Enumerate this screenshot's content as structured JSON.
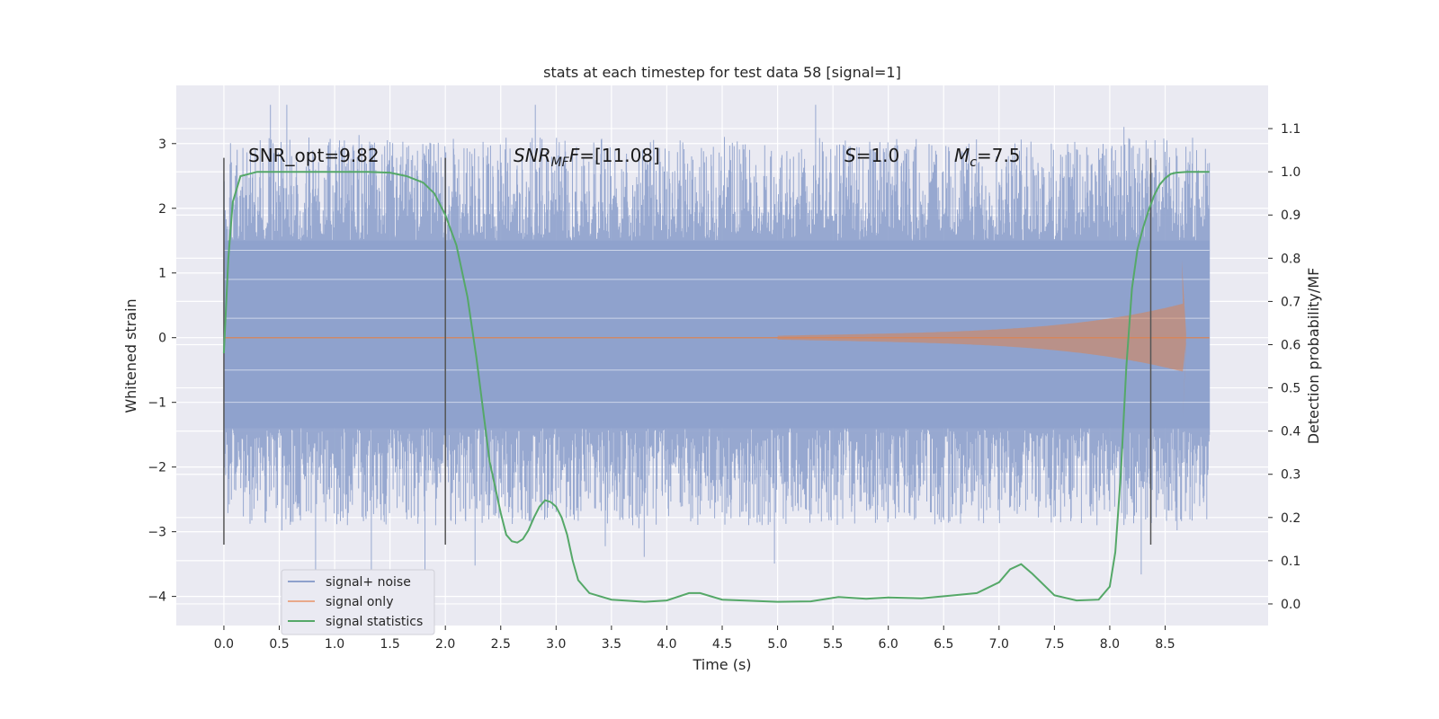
{
  "chart_data": {
    "type": "line",
    "title": "stats at each timestep for test data 58 [signal=1]",
    "xlabel": "Time (s)",
    "ylabel": "Whitened strain",
    "y2label": "Detection probability/MF",
    "xlim": [
      -0.43,
      9.43
    ],
    "ylim": [
      -4.45,
      3.9
    ],
    "y2lim": [
      -0.05,
      1.2
    ],
    "x_ticks": [
      0.0,
      0.5,
      1.0,
      1.5,
      2.0,
      2.5,
      3.0,
      3.5,
      4.0,
      4.5,
      5.0,
      5.5,
      6.0,
      6.5,
      7.0,
      7.5,
      8.0,
      8.5
    ],
    "x_tick_labels": [
      "0.0",
      "0.5",
      "1.0",
      "1.5",
      "2.0",
      "2.5",
      "3.0",
      "3.5",
      "4.0",
      "4.5",
      "5.0",
      "5.5",
      "6.0",
      "6.5",
      "7.0",
      "7.5",
      "8.0",
      "8.5"
    ],
    "y_ticks": [
      3,
      2,
      1,
      0,
      -1,
      -2,
      -3,
      -4
    ],
    "y_tick_labels": [
      "3",
      "2",
      "1",
      "0",
      "−1",
      "−2",
      "−3",
      "−4"
    ],
    "y2_ticks": [
      0.0,
      0.1,
      0.2,
      0.3,
      0.4,
      0.5,
      0.6,
      0.7,
      0.8,
      0.9,
      1.0,
      1.1
    ],
    "y2_tick_labels": [
      "0.0",
      "0.1",
      "0.2",
      "0.3",
      "0.4",
      "0.5",
      "0.6",
      "0.7",
      "0.8",
      "0.9",
      "1.0",
      "1.1"
    ],
    "grid": true,
    "legend_position": "lower-left",
    "noise": {
      "x_start": 0.0,
      "x_end": 8.9,
      "dense_band": [
        -1.4,
        1.5
      ],
      "max": 3.6,
      "min": -4.0
    },
    "vertical_lines": [
      0.0,
      2.0,
      8.37
    ],
    "vertical_line_range": [
      -3.2,
      2.78
    ],
    "signal_only": {
      "start": 5.0,
      "merger": 8.67,
      "peak_amplitude": 1.2,
      "min_amplitude": -1.25,
      "end": 8.9
    },
    "series": [
      {
        "name": "signal+ noise",
        "color": "#8ea1cc"
      },
      {
        "name": "signal only",
        "color": "#dd8452"
      },
      {
        "name": "signal statistics",
        "color": "#55a868",
        "x": [
          0.0,
          0.04,
          0.08,
          0.15,
          0.3,
          0.6,
          1.0,
          1.3,
          1.5,
          1.65,
          1.8,
          1.9,
          2.0,
          2.1,
          2.2,
          2.28,
          2.35,
          2.4,
          2.45,
          2.5,
          2.55,
          2.6,
          2.65,
          2.7,
          2.75,
          2.8,
          2.85,
          2.9,
          2.95,
          3.0,
          3.05,
          3.1,
          3.15,
          3.2,
          3.3,
          3.5,
          3.8,
          4.0,
          4.2,
          4.3,
          4.5,
          5.0,
          5.3,
          5.55,
          5.8,
          6.0,
          6.3,
          6.6,
          6.8,
          7.0,
          7.1,
          7.2,
          7.3,
          7.5,
          7.7,
          7.9,
          8.0,
          8.05,
          8.1,
          8.15,
          8.2,
          8.25,
          8.3,
          8.35,
          8.4,
          8.45,
          8.5,
          8.55,
          8.6,
          8.7,
          8.9
        ],
        "values": [
          0.58,
          0.8,
          0.93,
          0.99,
          1.0,
          1.0,
          1.0,
          1.0,
          0.998,
          0.99,
          0.975,
          0.95,
          0.9,
          0.83,
          0.71,
          0.57,
          0.43,
          0.33,
          0.27,
          0.21,
          0.16,
          0.145,
          0.142,
          0.15,
          0.17,
          0.2,
          0.225,
          0.24,
          0.236,
          0.225,
          0.2,
          0.16,
          0.1,
          0.055,
          0.025,
          0.01,
          0.005,
          0.008,
          0.025,
          0.025,
          0.01,
          0.005,
          0.006,
          0.016,
          0.012,
          0.015,
          0.013,
          0.02,
          0.025,
          0.05,
          0.08,
          0.092,
          0.07,
          0.02,
          0.008,
          0.01,
          0.04,
          0.12,
          0.3,
          0.55,
          0.73,
          0.82,
          0.87,
          0.91,
          0.945,
          0.97,
          0.985,
          0.995,
          0.998,
          1.0,
          1.0
        ]
      }
    ],
    "annotations": [
      {
        "id": "snr_opt",
        "text": "SNR_opt=9.82"
      },
      {
        "id": "snr_mf",
        "base": "SNR",
        "sub": "MF",
        "mid": "F",
        "rest": "=[11.08]"
      },
      {
        "id": "s",
        "base": "S",
        "rest": "=1.0"
      },
      {
        "id": "mc",
        "base": "M",
        "sub": "c",
        "rest": "=7.5"
      }
    ]
  }
}
